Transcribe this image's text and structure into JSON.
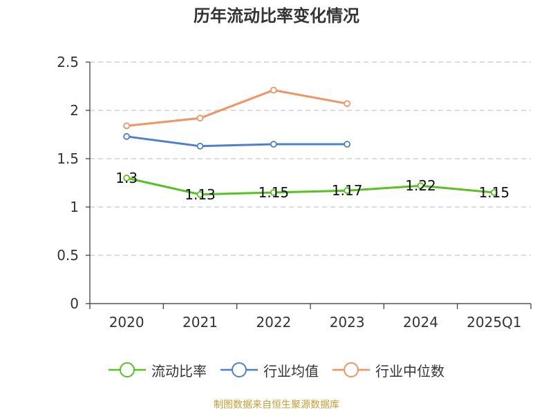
{
  "chart_data": {
    "type": "line",
    "title": "历年流动比率变化情况",
    "categories": [
      "2020",
      "2021",
      "2022",
      "2023",
      "2024",
      "2025Q1"
    ],
    "ylim": [
      0,
      2.5
    ],
    "yticks": [
      "0",
      "0.5",
      "1",
      "1.5",
      "2",
      "2.5"
    ],
    "grid": true,
    "legend_position": "bottom",
    "series": [
      {
        "name": "流动比率",
        "color": "#52c41a",
        "values": [
          1.3,
          1.13,
          1.15,
          1.17,
          1.22,
          1.15
        ],
        "labels": [
          "1.3",
          "1.13",
          "1.15",
          "1.17",
          "1.22",
          "1.15"
        ]
      },
      {
        "name": "行业均值",
        "color": "#4a7fd8",
        "values": [
          1.73,
          1.63,
          1.65,
          1.65,
          null,
          null
        ]
      },
      {
        "name": "行业中位数",
        "color": "#f7925e",
        "values": [
          1.84,
          1.92,
          2.21,
          2.07,
          null,
          null
        ]
      }
    ]
  },
  "source": "制图数据来自恒生聚源数据库"
}
